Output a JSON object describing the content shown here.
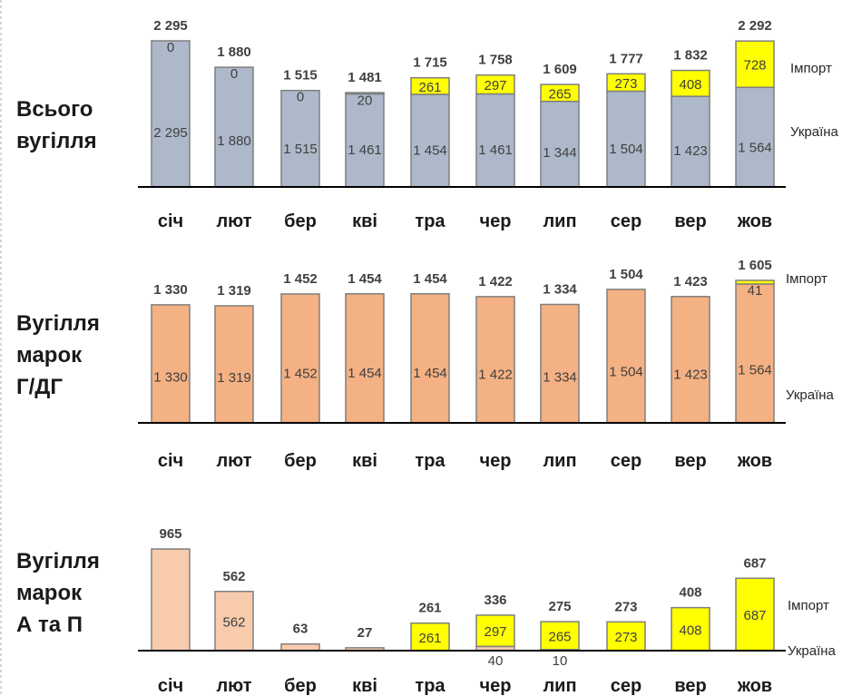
{
  "months": [
    "січ",
    "лют",
    "бер",
    "кві",
    "тра",
    "чер",
    "лип",
    "сер",
    "вер",
    "жов"
  ],
  "legend": {
    "import": "Імпорт",
    "ukraine": "Україна"
  },
  "colors": {
    "panel1_ukraine": "#adb9ca",
    "panel2_ukraine": "#f4b183",
    "panel3_ukraine": "#f8cbad",
    "import": "#ffff00",
    "bar_outline": "#7f7f7f",
    "axis": "#000000"
  },
  "chart_data": [
    {
      "type": "bar",
      "stacked": true,
      "title": "Всього\nвугілля",
      "categories": [
        "січ",
        "лют",
        "бер",
        "кві",
        "тра",
        "чер",
        "лип",
        "сер",
        "вер",
        "жов"
      ],
      "series": [
        {
          "name": "Україна",
          "values": [
            2295,
            1880,
            1515,
            1461,
            1454,
            1461,
            1344,
            1504,
            1423,
            1564
          ]
        },
        {
          "name": "Імпорт",
          "values": [
            0,
            0,
            0,
            20,
            261,
            297,
            265,
            273,
            408,
            728
          ]
        }
      ],
      "ukraine_labels": [
        "2 295",
        "1 880",
        "1 515",
        "1 461",
        "1 454",
        "1 461",
        "1 344",
        "1 504",
        "1 423",
        "1 564"
      ],
      "import_labels": [
        "0",
        "0",
        "0",
        "20",
        "261",
        "297",
        "265",
        "273",
        "408",
        "728"
      ],
      "totals": [
        "2 295",
        "1 880",
        "1 515",
        "1 481",
        "1 715",
        "1 758",
        "1 609",
        "1 777",
        "1 832",
        "2 292"
      ],
      "ylim": [
        0,
        2500
      ],
      "grid": false
    },
    {
      "type": "bar",
      "stacked": true,
      "title": "Вугілля\nмарок\nГ/ДГ",
      "categories": [
        "січ",
        "лют",
        "бер",
        "кві",
        "тра",
        "чер",
        "лип",
        "сер",
        "вер",
        "жов"
      ],
      "series": [
        {
          "name": "Україна",
          "values": [
            1330,
            1319,
            1452,
            1454,
            1454,
            1422,
            1334,
            1504,
            1423,
            1564
          ]
        },
        {
          "name": "Імпорт",
          "values": [
            0,
            0,
            0,
            0,
            0,
            0,
            0,
            0,
            0,
            41
          ]
        }
      ],
      "ukraine_labels": [
        "1 330",
        "1 319",
        "1 452",
        "1 454",
        "1 454",
        "1 422",
        "1 334",
        "1 504",
        "1 423",
        "1 564"
      ],
      "import_labels": [
        "",
        "",
        "",
        "",
        "",
        "",
        "",
        "",
        "",
        "41"
      ],
      "totals": [
        "1 330",
        "1 319",
        "1 452",
        "1 454",
        "1 454",
        "1 422",
        "1 334",
        "1 504",
        "1 423",
        "1 605"
      ],
      "ylim": [
        0,
        1800
      ],
      "grid": false
    },
    {
      "type": "bar",
      "stacked": true,
      "title": "Вугілля\nмарок\nА та П",
      "categories": [
        "січ",
        "лют",
        "бер",
        "кві",
        "тра",
        "чер",
        "лип",
        "сер",
        "вер",
        "жов"
      ],
      "series": [
        {
          "name": "Україна",
          "values": [
            965,
            562,
            63,
            27,
            0,
            40,
            10,
            0,
            0,
            0
          ]
        },
        {
          "name": "Імпорт",
          "values": [
            0,
            0,
            0,
            0,
            261,
            297,
            265,
            273,
            408,
            687
          ]
        }
      ],
      "ukraine_labels": [
        "",
        "562",
        "",
        "",
        "",
        "40",
        "10",
        "",
        "",
        ""
      ],
      "import_labels": [
        "",
        "",
        "",
        "",
        "261",
        "297",
        "265",
        "273",
        "408",
        "687"
      ],
      "totals": [
        "965",
        "562",
        "63",
        "27",
        "261",
        "336",
        "275",
        "273",
        "408",
        "687"
      ],
      "ylim": [
        0,
        1100
      ],
      "grid": false
    }
  ]
}
